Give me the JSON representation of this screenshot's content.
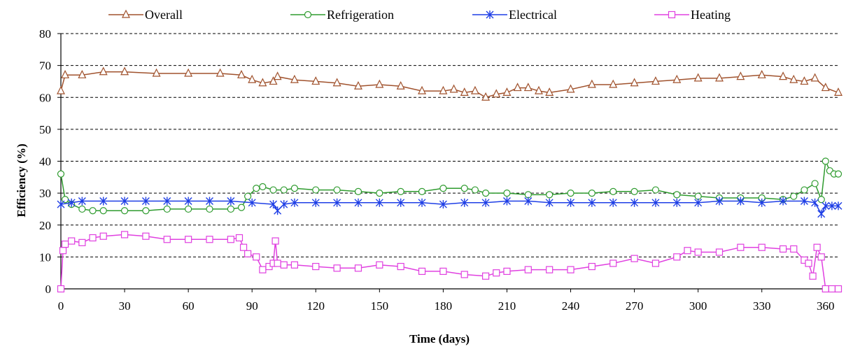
{
  "chart_data": {
    "type": "line",
    "xlabel": "Time (days)",
    "ylabel": "Efficiency (%)",
    "xlim": [
      0,
      366
    ],
    "ylim": [
      0,
      80
    ],
    "x_ticks": [
      0,
      30,
      60,
      90,
      120,
      150,
      180,
      210,
      240,
      270,
      300,
      330,
      360
    ],
    "y_ticks": [
      0,
      10,
      20,
      30,
      40,
      50,
      60,
      70,
      80
    ],
    "grid": "horizontal-dashed",
    "legend_placement": "top",
    "series": [
      {
        "name": "Overall",
        "color": "#A0522D",
        "marker": "triangle",
        "x": [
          0,
          2,
          10,
          20,
          30,
          45,
          60,
          75,
          85,
          90,
          95,
          100,
          102,
          110,
          120,
          130,
          140,
          150,
          160,
          170,
          180,
          185,
          190,
          195,
          200,
          205,
          210,
          215,
          220,
          225,
          230,
          240,
          250,
          260,
          270,
          280,
          290,
          300,
          310,
          320,
          330,
          340,
          345,
          350,
          355,
          360,
          366
        ],
        "y": [
          62,
          67,
          67,
          68,
          68,
          67.5,
          67.5,
          67.5,
          67,
          65.5,
          64.5,
          65,
          66.5,
          65.5,
          65,
          64.5,
          63.5,
          64,
          63.5,
          62,
          62,
          62.5,
          61.5,
          62,
          60,
          61,
          61.5,
          63,
          63,
          62,
          61.5,
          62.5,
          64,
          64,
          64.5,
          65,
          65.5,
          66,
          66,
          66.5,
          67,
          66.5,
          65.5,
          65,
          66,
          63,
          61.5
        ]
      },
      {
        "name": "Refrigeration",
        "color": "#2E9B2E",
        "marker": "circle",
        "x": [
          0,
          2,
          5,
          10,
          15,
          20,
          30,
          40,
          50,
          60,
          70,
          80,
          85,
          88,
          92,
          95,
          100,
          105,
          110,
          120,
          130,
          140,
          150,
          160,
          170,
          180,
          190,
          195,
          200,
          210,
          220,
          230,
          240,
          250,
          260,
          270,
          280,
          290,
          300,
          310,
          320,
          330,
          340,
          345,
          350,
          355,
          358,
          360,
          362,
          364,
          366
        ],
        "y": [
          36,
          28,
          26.5,
          25,
          24.5,
          24.5,
          24.5,
          24.5,
          25,
          25,
          25,
          25,
          25.5,
          29,
          31.5,
          32,
          31,
          31,
          31.5,
          31,
          31,
          30.5,
          30,
          30.5,
          30.5,
          31.5,
          31.5,
          31,
          30,
          30,
          29.5,
          29.5,
          30,
          30,
          30.5,
          30.5,
          31,
          29.5,
          29,
          28.5,
          28.5,
          28.5,
          28,
          29,
          31,
          33,
          28,
          40,
          37,
          36,
          36
        ]
      },
      {
        "name": "Electrical",
        "color": "#1F3FE6",
        "marker": "asterisk",
        "x": [
          0,
          5,
          10,
          20,
          30,
          40,
          50,
          60,
          70,
          80,
          90,
          100,
          102,
          105,
          110,
          120,
          130,
          140,
          150,
          160,
          170,
          180,
          190,
          200,
          210,
          220,
          230,
          240,
          250,
          260,
          270,
          280,
          290,
          300,
          310,
          320,
          330,
          340,
          350,
          355,
          358,
          360,
          363,
          366
        ],
        "y": [
          26.5,
          27,
          27.5,
          27.5,
          27.5,
          27.5,
          27.5,
          27.5,
          27.5,
          27.5,
          27,
          26.5,
          24.5,
          26.5,
          27,
          27,
          27,
          27,
          27,
          27,
          27,
          26.5,
          27,
          27,
          27.5,
          27.5,
          27,
          27,
          27,
          27,
          27,
          27,
          27,
          27,
          27.5,
          27.5,
          27,
          27.5,
          27.5,
          27,
          23.5,
          26,
          26,
          26
        ]
      },
      {
        "name": "Heating",
        "color": "#E040E0",
        "marker": "square",
        "x": [
          0,
          1,
          2,
          5,
          10,
          15,
          20,
          30,
          40,
          50,
          60,
          70,
          80,
          84,
          86,
          88,
          92,
          95,
          98,
          100,
          101,
          102,
          105,
          110,
          120,
          130,
          140,
          150,
          160,
          170,
          180,
          190,
          200,
          205,
          210,
          220,
          230,
          240,
          250,
          260,
          270,
          280,
          290,
          295,
          300,
          310,
          320,
          330,
          340,
          345,
          350,
          352,
          354,
          356,
          358,
          360,
          363,
          366
        ],
        "y": [
          0,
          12,
          14,
          15,
          14.5,
          16,
          16.5,
          17,
          16.5,
          15.5,
          15.5,
          15.5,
          15.5,
          16,
          13,
          11,
          10,
          6,
          7,
          8,
          15,
          8,
          7.5,
          7.5,
          7,
          6.5,
          6.5,
          7.5,
          7,
          5.5,
          5.5,
          4.5,
          4,
          5,
          5.5,
          6,
          6,
          6,
          7,
          8,
          9.5,
          8,
          10,
          12,
          11.5,
          11.5,
          13,
          13,
          12.5,
          12.5,
          9,
          8,
          4,
          13,
          10,
          0,
          0,
          0
        ]
      }
    ]
  }
}
